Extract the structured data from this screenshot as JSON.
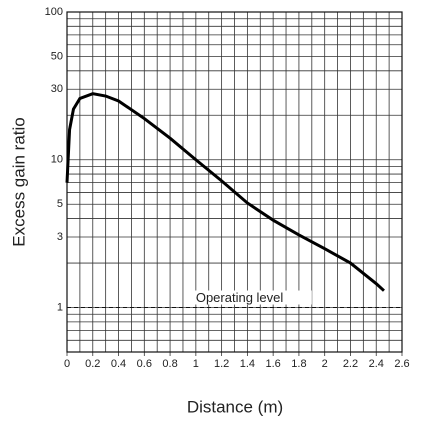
{
  "chart_data": {
    "type": "line",
    "log_y": true,
    "x_label": "Distance (m)",
    "y_label": "Excess gain ratio",
    "xlim": [
      0,
      2.6
    ],
    "xticks": [
      0,
      0.2,
      0.4,
      0.6,
      0.8,
      1,
      1.2,
      1.4,
      1.6,
      1.8,
      2,
      2.2,
      2.4,
      2.6
    ],
    "xgrid": [
      0.1,
      0.3,
      0.5,
      0.7,
      0.9,
      1.1,
      1.3,
      1.5,
      1.7,
      1.9,
      2.1,
      2.3,
      2.5
    ],
    "ylim": [
      0.5,
      100
    ],
    "yticks": [
      1,
      3,
      5,
      10,
      30,
      50,
      100
    ],
    "ygrid": [
      0.6,
      0.7,
      0.8,
      0.9,
      2,
      4,
      6,
      7,
      8,
      9,
      20,
      40,
      60,
      70,
      80,
      90
    ],
    "reference_line": {
      "value": 1,
      "label": "Operating level"
    },
    "series": [
      {
        "color": "#000000",
        "x": [
          0,
          0.02,
          0.05,
          0.1,
          0.2,
          0.3,
          0.4,
          0.6,
          0.8,
          1.0,
          1.2,
          1.4,
          1.6,
          1.8,
          2.0,
          2.2,
          2.4,
          2.46
        ],
        "values": [
          7,
          16,
          22,
          26,
          28,
          27,
          25,
          19,
          14,
          10,
          7.2,
          5.1,
          3.9,
          3.1,
          2.5,
          2.0,
          1.45,
          1.3
        ]
      }
    ]
  }
}
